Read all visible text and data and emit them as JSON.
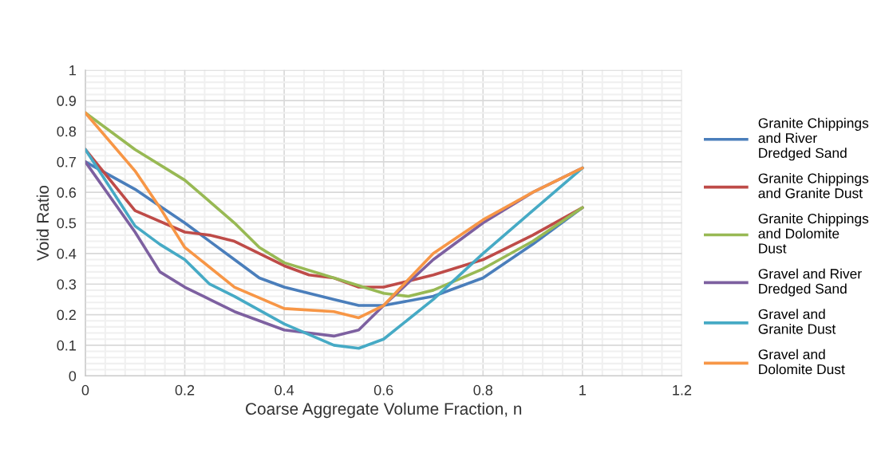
{
  "chart_data": {
    "type": "line",
    "xlabel": "Coarse Aggregate Volume Fraction, n",
    "ylabel": "Void Ratio",
    "xlim": [
      0,
      1.2
    ],
    "ylim": [
      0,
      1
    ],
    "xticks": [
      0,
      0.2,
      0.4,
      0.6,
      0.8,
      1,
      1.2
    ],
    "yticks": [
      0,
      0.1,
      0.2,
      0.3,
      0.4,
      0.5,
      0.6,
      0.7,
      0.8,
      0.9,
      1
    ],
    "grid": true,
    "legend": "right",
    "marker": "none",
    "line_style": "solid",
    "series": [
      {
        "name": "Granite Chippings\nand River\nDredged Sand",
        "color": "#4a7ebb",
        "x": [
          0,
          0.1,
          0.2,
          0.3,
          0.35,
          0.4,
          0.5,
          0.55,
          0.6,
          0.7,
          0.8,
          0.9,
          1
        ],
        "values": [
          0.7,
          0.61,
          0.5,
          0.38,
          0.32,
          0.29,
          0.25,
          0.23,
          0.23,
          0.26,
          0.32,
          0.43,
          0.55
        ]
      },
      {
        "name": "Granite Chippings\nand Granite Dust",
        "color": "#be4b48",
        "x": [
          0,
          0.1,
          0.2,
          0.25,
          0.3,
          0.4,
          0.45,
          0.5,
          0.55,
          0.6,
          0.7,
          0.8,
          0.9,
          1
        ],
        "values": [
          0.74,
          0.54,
          0.47,
          0.46,
          0.44,
          0.36,
          0.33,
          0.32,
          0.29,
          0.29,
          0.33,
          0.38,
          0.46,
          0.55
        ]
      },
      {
        "name": "Granite Chippings\nand Dolomite\nDust",
        "color": "#98b954",
        "x": [
          0,
          0.1,
          0.2,
          0.3,
          0.35,
          0.4,
          0.5,
          0.6,
          0.65,
          0.7,
          0.8,
          0.9,
          1
        ],
        "values": [
          0.86,
          0.74,
          0.64,
          0.5,
          0.42,
          0.37,
          0.32,
          0.27,
          0.26,
          0.28,
          0.35,
          0.44,
          0.55
        ]
      },
      {
        "name": "Gravel and River\nDredged Sand",
        "color": "#7d60a0",
        "x": [
          0,
          0.1,
          0.15,
          0.2,
          0.25,
          0.3,
          0.4,
          0.45,
          0.5,
          0.55,
          0.6,
          0.7,
          0.8,
          0.9,
          1
        ],
        "values": [
          0.7,
          0.47,
          0.34,
          0.29,
          0.25,
          0.21,
          0.15,
          0.14,
          0.13,
          0.15,
          0.23,
          0.38,
          0.5,
          0.6,
          0.68
        ]
      },
      {
        "name": "Gravel and\nGranite Dust",
        "color": "#46aac5",
        "x": [
          0,
          0.1,
          0.15,
          0.2,
          0.25,
          0.3,
          0.4,
          0.5,
          0.55,
          0.6,
          0.7,
          0.8,
          0.9,
          1
        ],
        "values": [
          0.74,
          0.49,
          0.43,
          0.38,
          0.3,
          0.26,
          0.17,
          0.1,
          0.09,
          0.12,
          0.25,
          0.4,
          0.54,
          0.68
        ]
      },
      {
        "name": "Gravel and\nDolomite Dust",
        "color": "#f79646",
        "x": [
          0,
          0.1,
          0.15,
          0.2,
          0.3,
          0.4,
          0.5,
          0.55,
          0.6,
          0.7,
          0.8,
          0.9,
          1
        ],
        "values": [
          0.86,
          0.67,
          0.55,
          0.42,
          0.29,
          0.22,
          0.21,
          0.19,
          0.23,
          0.4,
          0.51,
          0.6,
          0.68
        ]
      }
    ]
  }
}
